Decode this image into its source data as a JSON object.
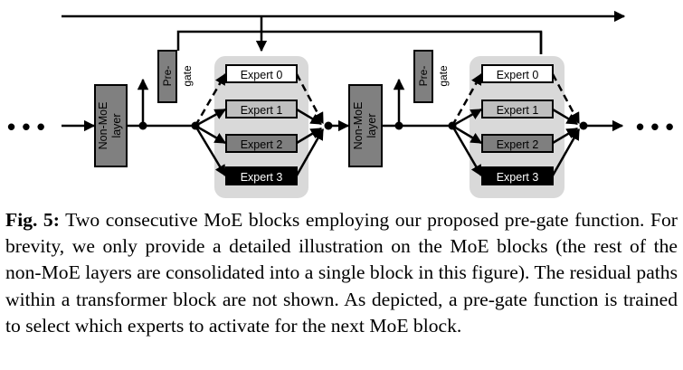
{
  "figure": {
    "non_moe_label": [
      "Non-MoE",
      "layer"
    ],
    "pregate_label": [
      "Pre-",
      "gate"
    ],
    "experts": [
      "Expert 0",
      "Expert 1",
      "Expert 2",
      "Expert 3"
    ],
    "ellipsis": "• • •",
    "colors": {
      "non_moe_fill": "#808080",
      "pregate_fill": "#808080",
      "moe_bg": "#d9d9d9",
      "expert0_fill": "#ffffff",
      "expert1_fill": "#bfbfbf",
      "expert2_fill": "#7f7f7f",
      "expert3_fill": "#000000",
      "line": "#000000"
    }
  },
  "caption": {
    "label": "Fig. 5:",
    "text": " Two consecutive MoE blocks employing our proposed pre-gate function. For brevity, we only provide a detailed illustration on the MoE blocks (the rest of the non-MoE layers are consolidated into a single block in this figure). The residual paths within a transformer block are not shown. As depicted, a pre-gate function is trained to select which experts to activate for the next MoE block."
  }
}
